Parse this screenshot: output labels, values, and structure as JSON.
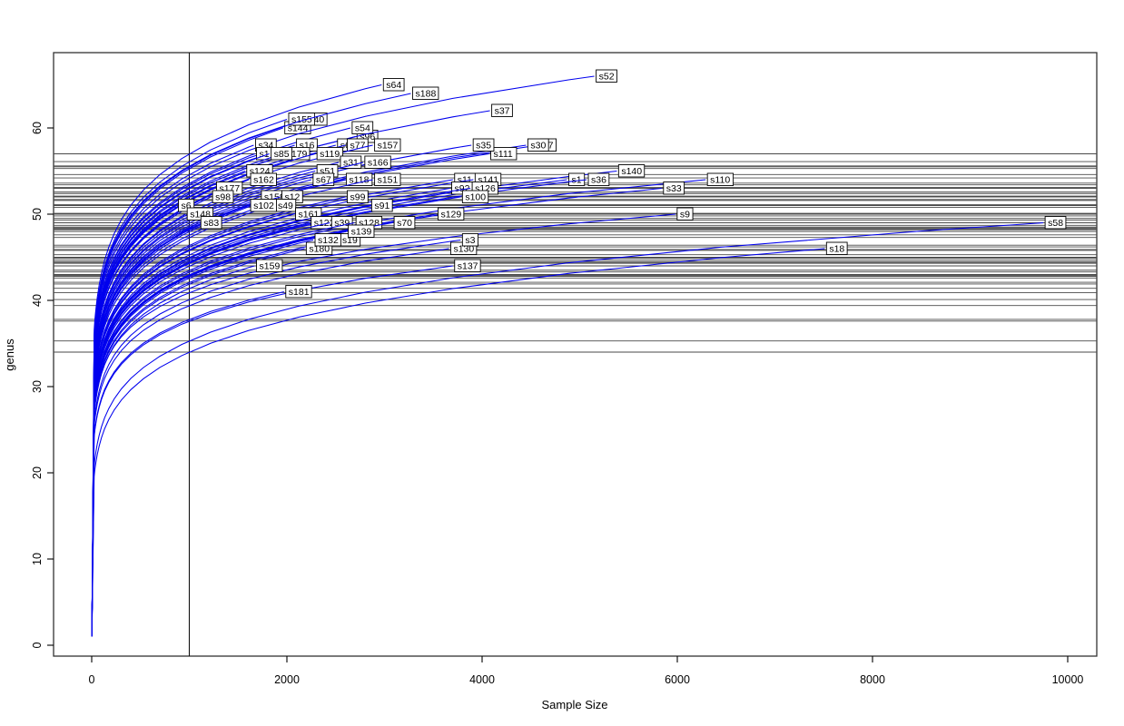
{
  "figure": {
    "colors": {
      "curve": "#0000ee",
      "hline": "#4a4a4a",
      "vline": "#111111",
      "box": "#333333",
      "label_bg": "#ffffff",
      "label_border": "#000000",
      "text": "#000000"
    }
  },
  "chart_data": {
    "type": "line",
    "title": "",
    "xlabel": "Sample Size",
    "ylabel": "genus",
    "x_ticks": [
      0,
      2000,
      4000,
      6000,
      8000,
      10000
    ],
    "y_ticks": [
      0,
      10,
      20,
      30,
      40,
      50,
      60
    ],
    "xlim": [
      -390,
      10290
    ],
    "ylim": [
      -1,
      69
    ],
    "grid": false,
    "vline_x": 1000,
    "legend": "none",
    "description": "Rarefaction curves per sample; horizontal lines mark rarefied genus richness at sample size 1000; labels mark curve endpoints",
    "samples": [
      {
        "id": "s40",
        "size": 2180,
        "genus": 61,
        "genus_at_1000": 55.6
      },
      {
        "id": "s144",
        "size": 1960,
        "genus": 60,
        "genus_at_1000": 55.3
      },
      {
        "id": "s155",
        "size": 2000,
        "genus": 61,
        "genus_at_1000": 56.1
      },
      {
        "id": "s96",
        "size": 2700,
        "genus": 59,
        "genus_at_1000": 52.4
      },
      {
        "id": "s54",
        "size": 2650,
        "genus": 60,
        "genus_at_1000": 53.4
      },
      {
        "id": "s64",
        "size": 2970,
        "genus": 65,
        "genus_at_1000": 57.0
      },
      {
        "id": "s188",
        "size": 3270,
        "genus": 64,
        "genus_at_1000": 55.5
      },
      {
        "id": "s52",
        "size": 5150,
        "genus": 66,
        "genus_at_1000": 54.2
      },
      {
        "id": "s37",
        "size": 4080,
        "genus": 62,
        "genus_at_1000": 52.4
      },
      {
        "id": "s34",
        "size": 1660,
        "genus": 58,
        "genus_at_1000": 54.6
      },
      {
        "id": "s6",
        "size": 2500,
        "genus": 58,
        "genus_at_1000": 52.0
      },
      {
        "id": "s77",
        "size": 2600,
        "genus": 58,
        "genus_at_1000": 51.7
      },
      {
        "id": "s16",
        "size": 2080,
        "genus": 58,
        "genus_at_1000": 53.1
      },
      {
        "id": "s157",
        "size": 2880,
        "genus": 58,
        "genus_at_1000": 51.1
      },
      {
        "id": "s7",
        "size": 4580,
        "genus": 58,
        "genus_at_1000": 48.3
      },
      {
        "id": "s30",
        "size": 4450,
        "genus": 58,
        "genus_at_1000": 48.5
      },
      {
        "id": "s111",
        "size": 4070,
        "genus": 57,
        "genus_at_1000": 48.2
      },
      {
        "id": "s35",
        "size": 3890,
        "genus": 58,
        "genus_at_1000": 49.3
      },
      {
        "id": "s1",
        "size": 1670,
        "genus": 57,
        "genus_at_1000": 53.6
      },
      {
        "id": "s179",
        "size": 1950,
        "genus": 57,
        "genus_at_1000": 52.6
      },
      {
        "id": "s85",
        "size": 1820,
        "genus": 57,
        "genus_at_1000": 53.0
      },
      {
        "id": "s119",
        "size": 2290,
        "genus": 57,
        "genus_at_1000": 51.6
      },
      {
        "id": "s31",
        "size": 2530,
        "genus": 56,
        "genus_at_1000": 50.1
      },
      {
        "id": "s166",
        "size": 2780,
        "genus": 56,
        "genus_at_1000": 49.5
      },
      {
        "id": "s124",
        "size": 1570,
        "genus": 55,
        "genus_at_1000": 52.1
      },
      {
        "id": "s140",
        "size": 5380,
        "genus": 55,
        "genus_at_1000": 44.9
      },
      {
        "id": "s51",
        "size": 2290,
        "genus": 55,
        "genus_at_1000": 49.8
      },
      {
        "id": "s162",
        "size": 1610,
        "genus": 54,
        "genus_at_1000": 51.0
      },
      {
        "id": "s67",
        "size": 2250,
        "genus": 54,
        "genus_at_1000": 49.0
      },
      {
        "id": "s118",
        "size": 2590,
        "genus": 54,
        "genus_at_1000": 48.2
      },
      {
        "id": "s151",
        "size": 2880,
        "genus": 54,
        "genus_at_1000": 47.6
      },
      {
        "id": "s11",
        "size": 3700,
        "genus": 54,
        "genus_at_1000": 46.2
      },
      {
        "id": "s141",
        "size": 3910,
        "genus": 54,
        "genus_at_1000": 45.9
      },
      {
        "id": "s1",
        "size": 4870,
        "genus": 54,
        "genus_at_1000": 44.7
      },
      {
        "id": "s36",
        "size": 5070,
        "genus": 54,
        "genus_at_1000": 44.4
      },
      {
        "id": "s110",
        "size": 6290,
        "genus": 54,
        "genus_at_1000": 43.3
      },
      {
        "id": "s177",
        "size": 1260,
        "genus": 53,
        "genus_at_1000": 51.6
      },
      {
        "id": "s92",
        "size": 3670,
        "genus": 53,
        "genus_at_1000": 45.3
      },
      {
        "id": "s126",
        "size": 3880,
        "genus": 53,
        "genus_at_1000": 45.0
      },
      {
        "id": "s33",
        "size": 5840,
        "genus": 53,
        "genus_at_1000": 42.9
      },
      {
        "id": "s98",
        "size": 1220,
        "genus": 52,
        "genus_at_1000": 50.8
      },
      {
        "id": "s158",
        "size": 1720,
        "genus": 52,
        "genus_at_1000": 48.7
      },
      {
        "id": "s12",
        "size": 1930,
        "genus": 52,
        "genus_at_1000": 48.0
      },
      {
        "id": "s100",
        "size": 3780,
        "genus": 52,
        "genus_at_1000": 44.3
      },
      {
        "id": "s99",
        "size": 2600,
        "genus": 52,
        "genus_at_1000": 46.4
      },
      {
        "id": "s49",
        "size": 1860,
        "genus": 51,
        "genus_at_1000": 47.3
      },
      {
        "id": "s6",
        "size": 870,
        "genus": 51,
        "genus_at_1000": 51.0
      },
      {
        "id": "s102",
        "size": 1610,
        "genus": 51,
        "genus_at_1000": 48.2
      },
      {
        "id": "s161",
        "size": 2070,
        "genus": 50,
        "genus_at_1000": 45.8
      },
      {
        "id": "s91",
        "size": 2850,
        "genus": 51,
        "genus_at_1000": 45.0
      },
      {
        "id": "s148",
        "size": 960,
        "genus": 50,
        "genus_at_1000": 50.0
      },
      {
        "id": "s129",
        "size": 3530,
        "genus": 50,
        "genus_at_1000": 43.0
      },
      {
        "id": "s9",
        "size": 5980,
        "genus": 50,
        "genus_at_1000": 40.9
      },
      {
        "id": "s83",
        "size": 1100,
        "genus": 49,
        "genus_at_1000": 48.4
      },
      {
        "id": "s58",
        "size": 9750,
        "genus": 49,
        "genus_at_1000": 35.3
      },
      {
        "id": "s122",
        "size": 2230,
        "genus": 49,
        "genus_at_1000": 44.5
      },
      {
        "id": "s39",
        "size": 2440,
        "genus": 49,
        "genus_at_1000": 44.0
      },
      {
        "id": "s128",
        "size": 2690,
        "genus": 49,
        "genus_at_1000": 43.5
      },
      {
        "id": "s70",
        "size": 3080,
        "genus": 49,
        "genus_at_1000": 42.8
      },
      {
        "id": "s19",
        "size": 2520,
        "genus": 47,
        "genus_at_1000": 42.1
      },
      {
        "id": "s139",
        "size": 2610,
        "genus": 48,
        "genus_at_1000": 42.8
      },
      {
        "id": "s180",
        "size": 2180,
        "genus": 46,
        "genus_at_1000": 41.9
      },
      {
        "id": "s132",
        "size": 2270,
        "genus": 47,
        "genus_at_1000": 42.6
      },
      {
        "id": "s130",
        "size": 3660,
        "genus": 46,
        "genus_at_1000": 39.4
      },
      {
        "id": "s3",
        "size": 3780,
        "genus": 47,
        "genus_at_1000": 40.1
      },
      {
        "id": "s18",
        "size": 7510,
        "genus": 46,
        "genus_at_1000": 34.0
      },
      {
        "id": "s137",
        "size": 3700,
        "genus": 44,
        "genus_at_1000": 37.6
      },
      {
        "id": "s159",
        "size": 1670,
        "genus": 44,
        "genus_at_1000": 41.4
      },
      {
        "id": "s181",
        "size": 1970,
        "genus": 41,
        "genus_at_1000": 37.8
      }
    ]
  }
}
